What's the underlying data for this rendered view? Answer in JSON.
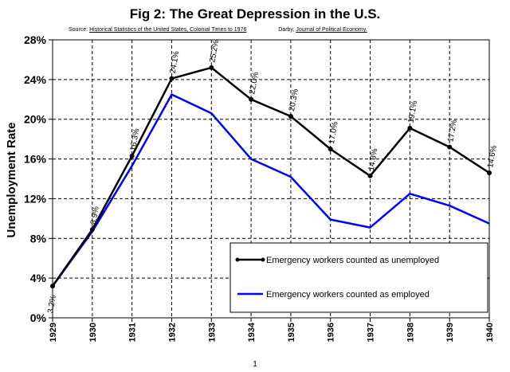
{
  "title": "Fig 2:  The Great Depression in the U.S.",
  "source": {
    "prefix": "Source:",
    "book": "Historical Statistics of the United States, Colonial Times to 1976",
    "author": "Darby,",
    "journal": "Journal of Political Economy."
  },
  "page_number": "1",
  "colors": {
    "unemployed": "#000000",
    "employed": "#0000ff",
    "grid": "#000000"
  },
  "chart_data": {
    "type": "line",
    "ylabel": "Unemployment Rate",
    "xlabel": "",
    "ylim": [
      0,
      28
    ],
    "yticks": [
      0,
      4,
      8,
      12,
      16,
      20,
      24,
      28
    ],
    "ytick_labels": [
      "0%",
      "4%",
      "8%",
      "12%",
      "16%",
      "20%",
      "24%",
      "28%"
    ],
    "x": [
      "1929",
      "1930",
      "1931",
      "1932",
      "1933",
      "1934",
      "1935",
      "1936",
      "1937",
      "1938",
      "1939",
      "1940"
    ],
    "grid": true,
    "legend_position": "bottom-right",
    "series": [
      {
        "name": "Emergency workers counted as unemployed",
        "key": "unemployed",
        "markers": true,
        "values": [
          3.2,
          8.9,
          16.3,
          24.1,
          25.2,
          22.0,
          20.3,
          17.0,
          14.3,
          19.1,
          17.2,
          14.6
        ],
        "labels": [
          "3.2%",
          "8.9%",
          "16.3%",
          "24.1%",
          "25.2%",
          "22.0%",
          "20.3%",
          "17.0%",
          "14.3%",
          "19.1%",
          "17.2%",
          "14.6%"
        ]
      },
      {
        "name": "Emergency workers counted as employed",
        "key": "employed",
        "markers": false,
        "values": [
          3.2,
          8.7,
          15.3,
          22.5,
          20.6,
          16.0,
          14.2,
          9.9,
          9.1,
          12.5,
          11.3,
          9.5
        ]
      }
    ]
  }
}
